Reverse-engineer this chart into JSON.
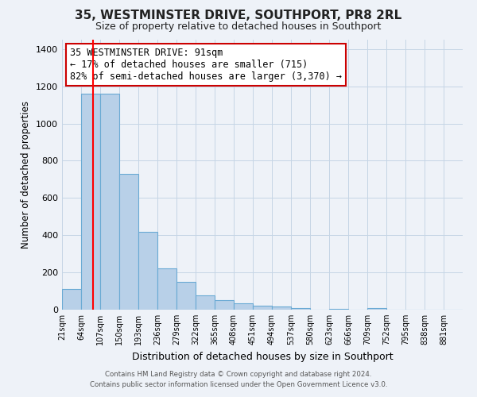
{
  "title": "35, WESTMINSTER DRIVE, SOUTHPORT, PR8 2RL",
  "subtitle": "Size of property relative to detached houses in Southport",
  "xlabel": "Distribution of detached houses by size in Southport",
  "ylabel": "Number of detached properties",
  "bar_labels": [
    "21sqm",
    "64sqm",
    "107sqm",
    "150sqm",
    "193sqm",
    "236sqm",
    "279sqm",
    "322sqm",
    "365sqm",
    "408sqm",
    "451sqm",
    "494sqm",
    "537sqm",
    "580sqm",
    "623sqm",
    "666sqm",
    "709sqm",
    "752sqm",
    "795sqm",
    "838sqm",
    "881sqm"
  ],
  "bar_values": [
    110,
    1160,
    1160,
    730,
    420,
    220,
    150,
    75,
    50,
    35,
    20,
    15,
    10,
    2,
    5,
    2,
    8,
    1,
    1,
    1,
    1
  ],
  "bar_color": "#b8d0e8",
  "bar_edge_color": "#6aaad4",
  "ylim": [
    0,
    1450
  ],
  "yticks": [
    0,
    200,
    400,
    600,
    800,
    1000,
    1200,
    1400
  ],
  "property_line_x": 91,
  "bin_edges": [
    21,
    64,
    107,
    150,
    193,
    236,
    279,
    322,
    365,
    408,
    451,
    494,
    537,
    580,
    623,
    666,
    709,
    752,
    795,
    838,
    881,
    924
  ],
  "annotation_text": "35 WESTMINSTER DRIVE: 91sqm\n← 17% of detached houses are smaller (715)\n82% of semi-detached houses are larger (3,370) →",
  "annotation_box_color": "#ffffff",
  "annotation_box_edge_color": "#cc0000",
  "footer_line1": "Contains HM Land Registry data © Crown copyright and database right 2024.",
  "footer_line2": "Contains public sector information licensed under the Open Government Licence v3.0.",
  "background_color": "#eef2f8",
  "grid_color": "#c5d5e5",
  "plot_area_color": "#eef2f8"
}
